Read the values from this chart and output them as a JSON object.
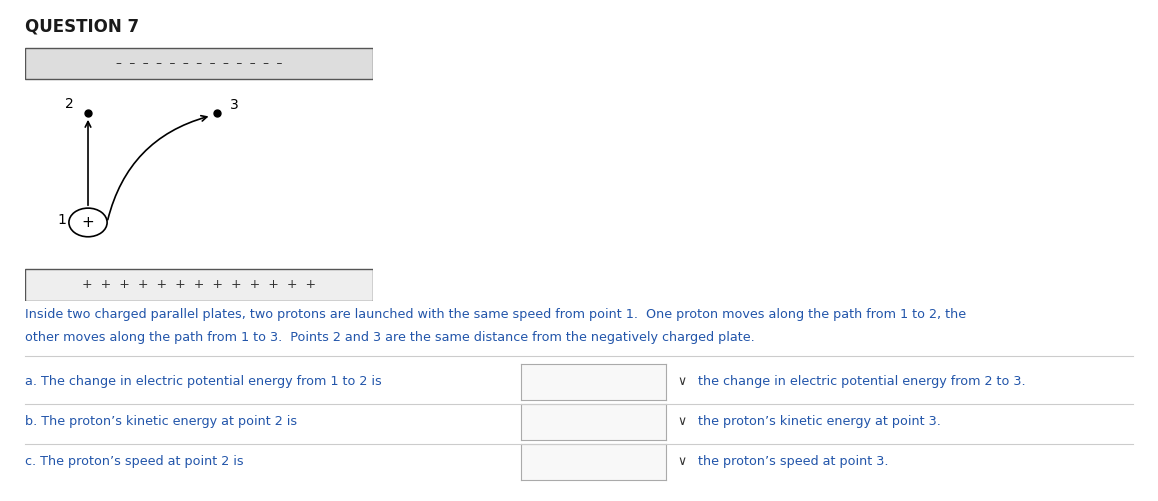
{
  "title": "QUESTION 7",
  "title_color": "#1a1a1a",
  "title_fontsize": 12,
  "title_fontweight": "bold",
  "bg_color": "#ffffff",
  "text_color": "#2255aa",
  "body_text_line1": "Inside two charged parallel plates, two protons are launched with the same speed from point 1.  One proton moves along the path from 1 to 2, the",
  "body_text_line2": "other moves along the path from 1 to 3.  Points 2 and 3 are the same distance from the negatively charged plate.",
  "questions": [
    {
      "label": "a.",
      "left_text": "The change in electric potential energy from 1 to 2 is",
      "right_text": "the change in electric potential energy from 2 to 3."
    },
    {
      "label": "b.",
      "left_text": "The proton’s kinetic energy at point 2 is",
      "right_text": "the proton’s kinetic energy at point 3."
    },
    {
      "label": "c.",
      "left_text": "The proton’s speed at point 2 is",
      "right_text": "the proton’s speed at point 3."
    }
  ],
  "diagram": {
    "neg_plate_dashes": "–  –  –  –  –  –  –  –  –  –  –  –  –",
    "pos_plate_plus": "+  +  +  +  +  +  +  +  +  +  +  +  +"
  }
}
